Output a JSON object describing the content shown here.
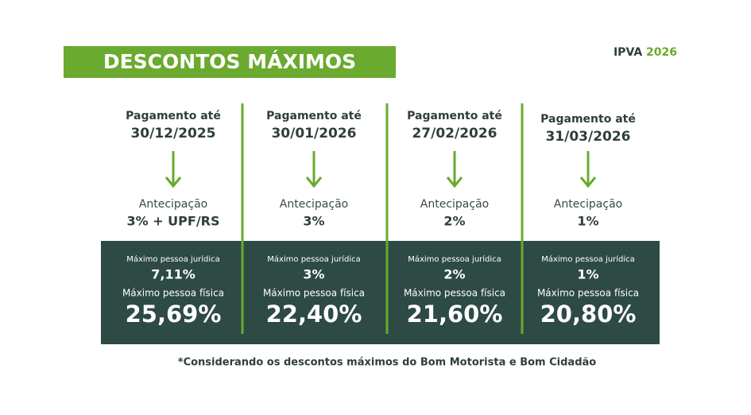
{
  "header": {
    "title": "DESCONTOS MÁXIMOS",
    "tag": {
      "label": "IPVA",
      "year": "2026"
    }
  },
  "columns": [
    {
      "heading": "Pagamento até",
      "date": "30/12/2025",
      "antecipacao_label": "Antecipação",
      "antecipacao": "3% + UPF/RS",
      "pj_label": "Máximo pessoa jurídica",
      "pj": "7,11%",
      "pf_label": "Máximo pessoa física",
      "pf": "25,69%"
    },
    {
      "heading": "Pagamento até",
      "date": "30/01/2026",
      "antecipacao_label": "Antecipação",
      "antecipacao": "3%",
      "pj_label": "Máximo pessoa jurídica",
      "pj": "3%",
      "pf_label": "Máximo pessoa física",
      "pf": "22,40%"
    },
    {
      "heading": "Pagamento até",
      "date": "27/02/2026",
      "antecipacao_label": "Antecipação",
      "antecipacao": "2%",
      "pj_label": "Máximo pessoa jurídica",
      "pj": "2%",
      "pf_label": "Máximo pessoa física",
      "pf": "21,60%"
    },
    {
      "heading": "Pagamento até",
      "date": "31/03/2026",
      "antecipacao_label": "Antecipação",
      "antecipacao": "1%",
      "pj_label": "Máximo pessoa jurídica",
      "pj": "1%",
      "pf_label": "Máximo pessoa física",
      "pf": "20,80%"
    }
  ],
  "footnote": "*Considerando os descontos máximos do Bom Motorista e Bom Cidadão"
}
